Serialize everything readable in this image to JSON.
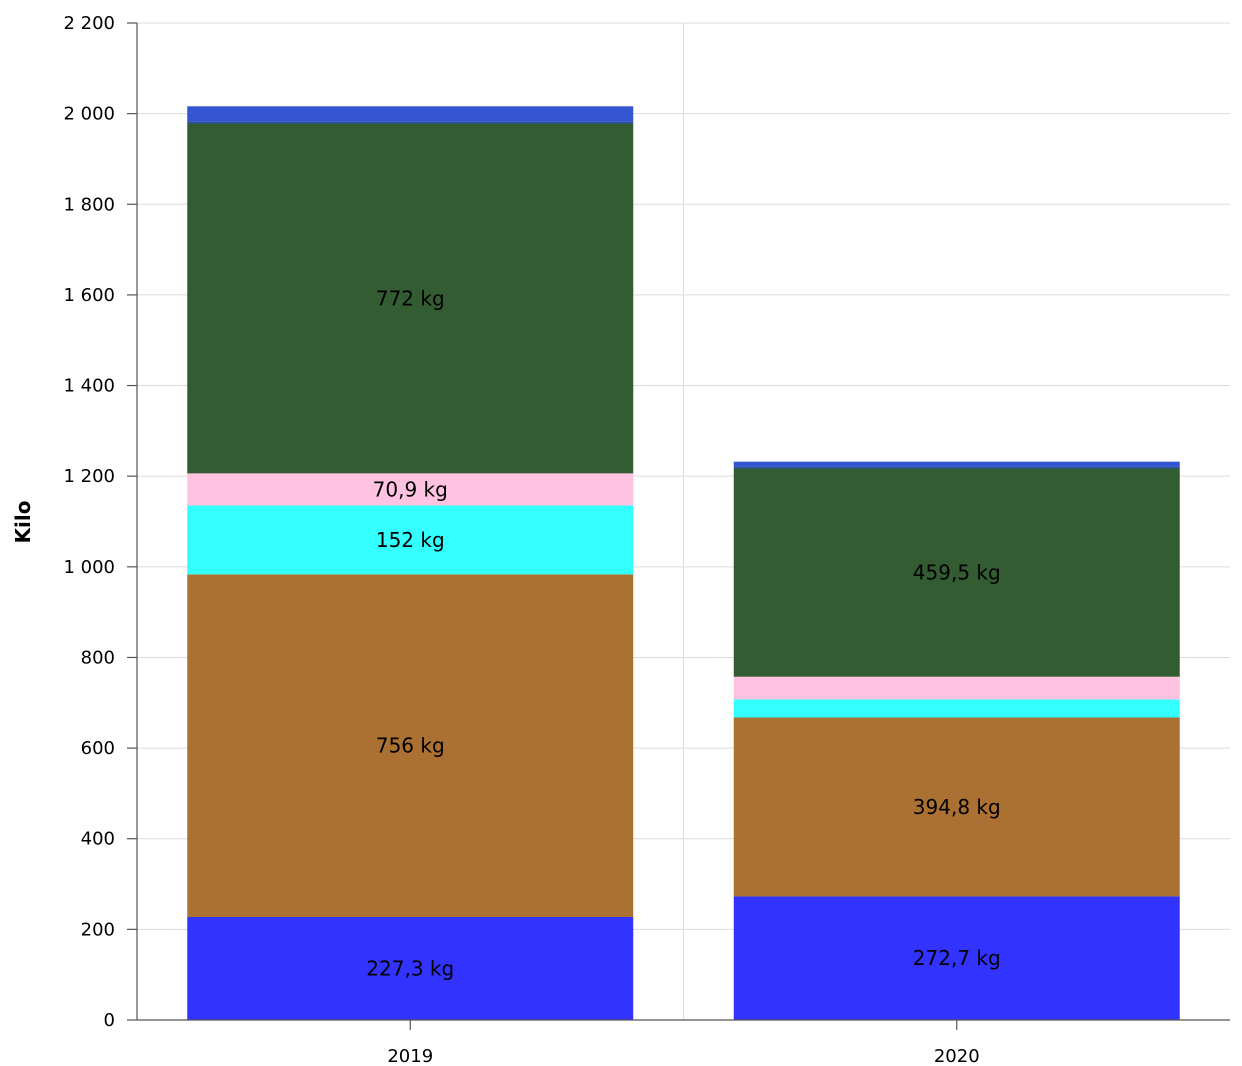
{
  "chart_data": {
    "type": "bar",
    "stacked": true,
    "categories": [
      "2019",
      "2020"
    ],
    "ylabel": "Kilo",
    "xlabel": "",
    "ylim": [
      0,
      2200
    ],
    "yticks": [
      0,
      200,
      400,
      600,
      800,
      1000,
      1200,
      1400,
      1600,
      1800,
      2000,
      2200
    ],
    "ytick_labels": [
      "0",
      "200",
      "400",
      "600",
      "800",
      "1 000",
      "1 200",
      "1 400",
      "1 600",
      "1 800",
      "2 000",
      "2 200"
    ],
    "grid": true,
    "series": [
      {
        "color": "#3333ff",
        "values": [
          227.3,
          272.7
        ],
        "labels": [
          "227,3 kg",
          "272,7 kg"
        ]
      },
      {
        "color": "#ab7133",
        "values": [
          756,
          394.8
        ],
        "labels": [
          "756 kg",
          "394,8 kg"
        ]
      },
      {
        "color": "#33ffff",
        "values": [
          152,
          40
        ],
        "labels": [
          "152 kg",
          ""
        ]
      },
      {
        "color": "#ffc2e0",
        "values": [
          70.9,
          50
        ],
        "labels": [
          "70,9 kg",
          ""
        ]
      },
      {
        "color": "#335c33",
        "values": [
          772,
          459.5
        ],
        "labels": [
          "772 kg",
          "459,5 kg"
        ]
      },
      {
        "color": "#2a4fa8",
        "values": [
          5,
          5
        ],
        "labels": [
          "",
          ""
        ]
      },
      {
        "color": "#3355d1",
        "values": [
          33,
          10
        ],
        "labels": [
          "",
          ""
        ]
      }
    ]
  }
}
